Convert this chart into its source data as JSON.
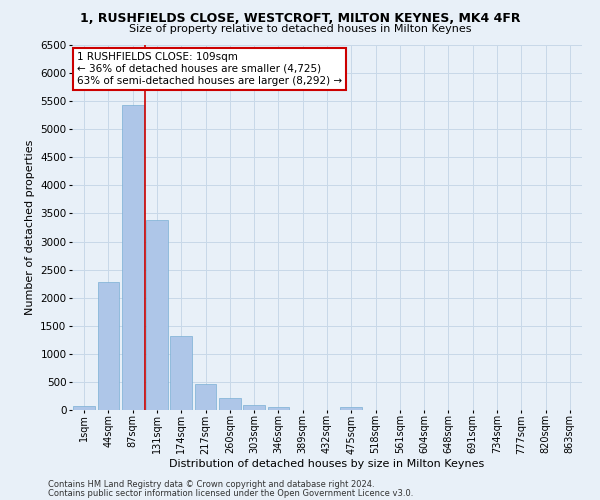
{
  "title_line1": "1, RUSHFIELDS CLOSE, WESTCROFT, MILTON KEYNES, MK4 4FR",
  "title_line2": "Size of property relative to detached houses in Milton Keynes",
  "xlabel": "Distribution of detached houses by size in Milton Keynes",
  "ylabel": "Number of detached properties",
  "footnote1": "Contains HM Land Registry data © Crown copyright and database right 2024.",
  "footnote2": "Contains public sector information licensed under the Open Government Licence v3.0.",
  "bar_labels": [
    "1sqm",
    "44sqm",
    "87sqm",
    "131sqm",
    "174sqm",
    "217sqm",
    "260sqm",
    "303sqm",
    "346sqm",
    "389sqm",
    "432sqm",
    "475sqm",
    "518sqm",
    "561sqm",
    "604sqm",
    "648sqm",
    "691sqm",
    "734sqm",
    "777sqm",
    "820sqm",
    "863sqm"
  ],
  "bar_values": [
    70,
    2280,
    5430,
    3380,
    1310,
    470,
    210,
    90,
    50,
    0,
    0,
    60,
    0,
    0,
    0,
    0,
    0,
    0,
    0,
    0,
    0
  ],
  "bar_color": "#aec6e8",
  "bar_edge_color": "#7aafd4",
  "grid_color": "#c8d8e8",
  "background_color": "#e8f0f8",
  "vline_color": "#cc0000",
  "annotation_text": "1 RUSHFIELDS CLOSE: 109sqm\n← 36% of detached houses are smaller (4,725)\n63% of semi-detached houses are larger (8,292) →",
  "annotation_box_color": "#ffffff",
  "annotation_box_edge": "#cc0000",
  "ylim": [
    0,
    6500
  ],
  "yticks": [
    0,
    500,
    1000,
    1500,
    2000,
    2500,
    3000,
    3500,
    4000,
    4500,
    5000,
    5500,
    6000,
    6500
  ]
}
